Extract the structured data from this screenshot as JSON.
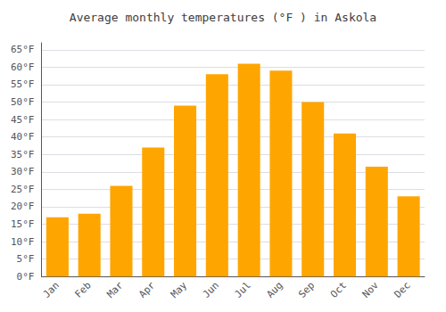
{
  "chart_data": {
    "type": "bar",
    "title": "Average monthly temperatures (°F ) in Askola",
    "categories": [
      "Jan",
      "Feb",
      "Mar",
      "Apr",
      "May",
      "Jun",
      "Jul",
      "Aug",
      "Sep",
      "Oct",
      "Nov",
      "Dec"
    ],
    "values": [
      17,
      18,
      26,
      37,
      49,
      58,
      61,
      59,
      50,
      41,
      31.5,
      23
    ],
    "color": "#FFA500",
    "ylim": [
      0,
      67
    ],
    "yticks": [
      {
        "value": 0,
        "label": "0°F"
      },
      {
        "value": 5,
        "label": "5°F"
      },
      {
        "value": 10,
        "label": "10°F"
      },
      {
        "value": 15,
        "label": "15°F"
      },
      {
        "value": 20,
        "label": "20°F"
      },
      {
        "value": 25,
        "label": "25°F"
      },
      {
        "value": 30,
        "label": "30°F"
      },
      {
        "value": 35,
        "label": "35°F"
      },
      {
        "value": 40,
        "label": "40°F"
      },
      {
        "value": 45,
        "label": "45°F"
      },
      {
        "value": 50,
        "label": "50°F"
      },
      {
        "value": 55,
        "label": "55°F"
      },
      {
        "value": 60,
        "label": "60°F"
      },
      {
        "value": 65,
        "label": "65°F"
      }
    ],
    "grid": true
  }
}
